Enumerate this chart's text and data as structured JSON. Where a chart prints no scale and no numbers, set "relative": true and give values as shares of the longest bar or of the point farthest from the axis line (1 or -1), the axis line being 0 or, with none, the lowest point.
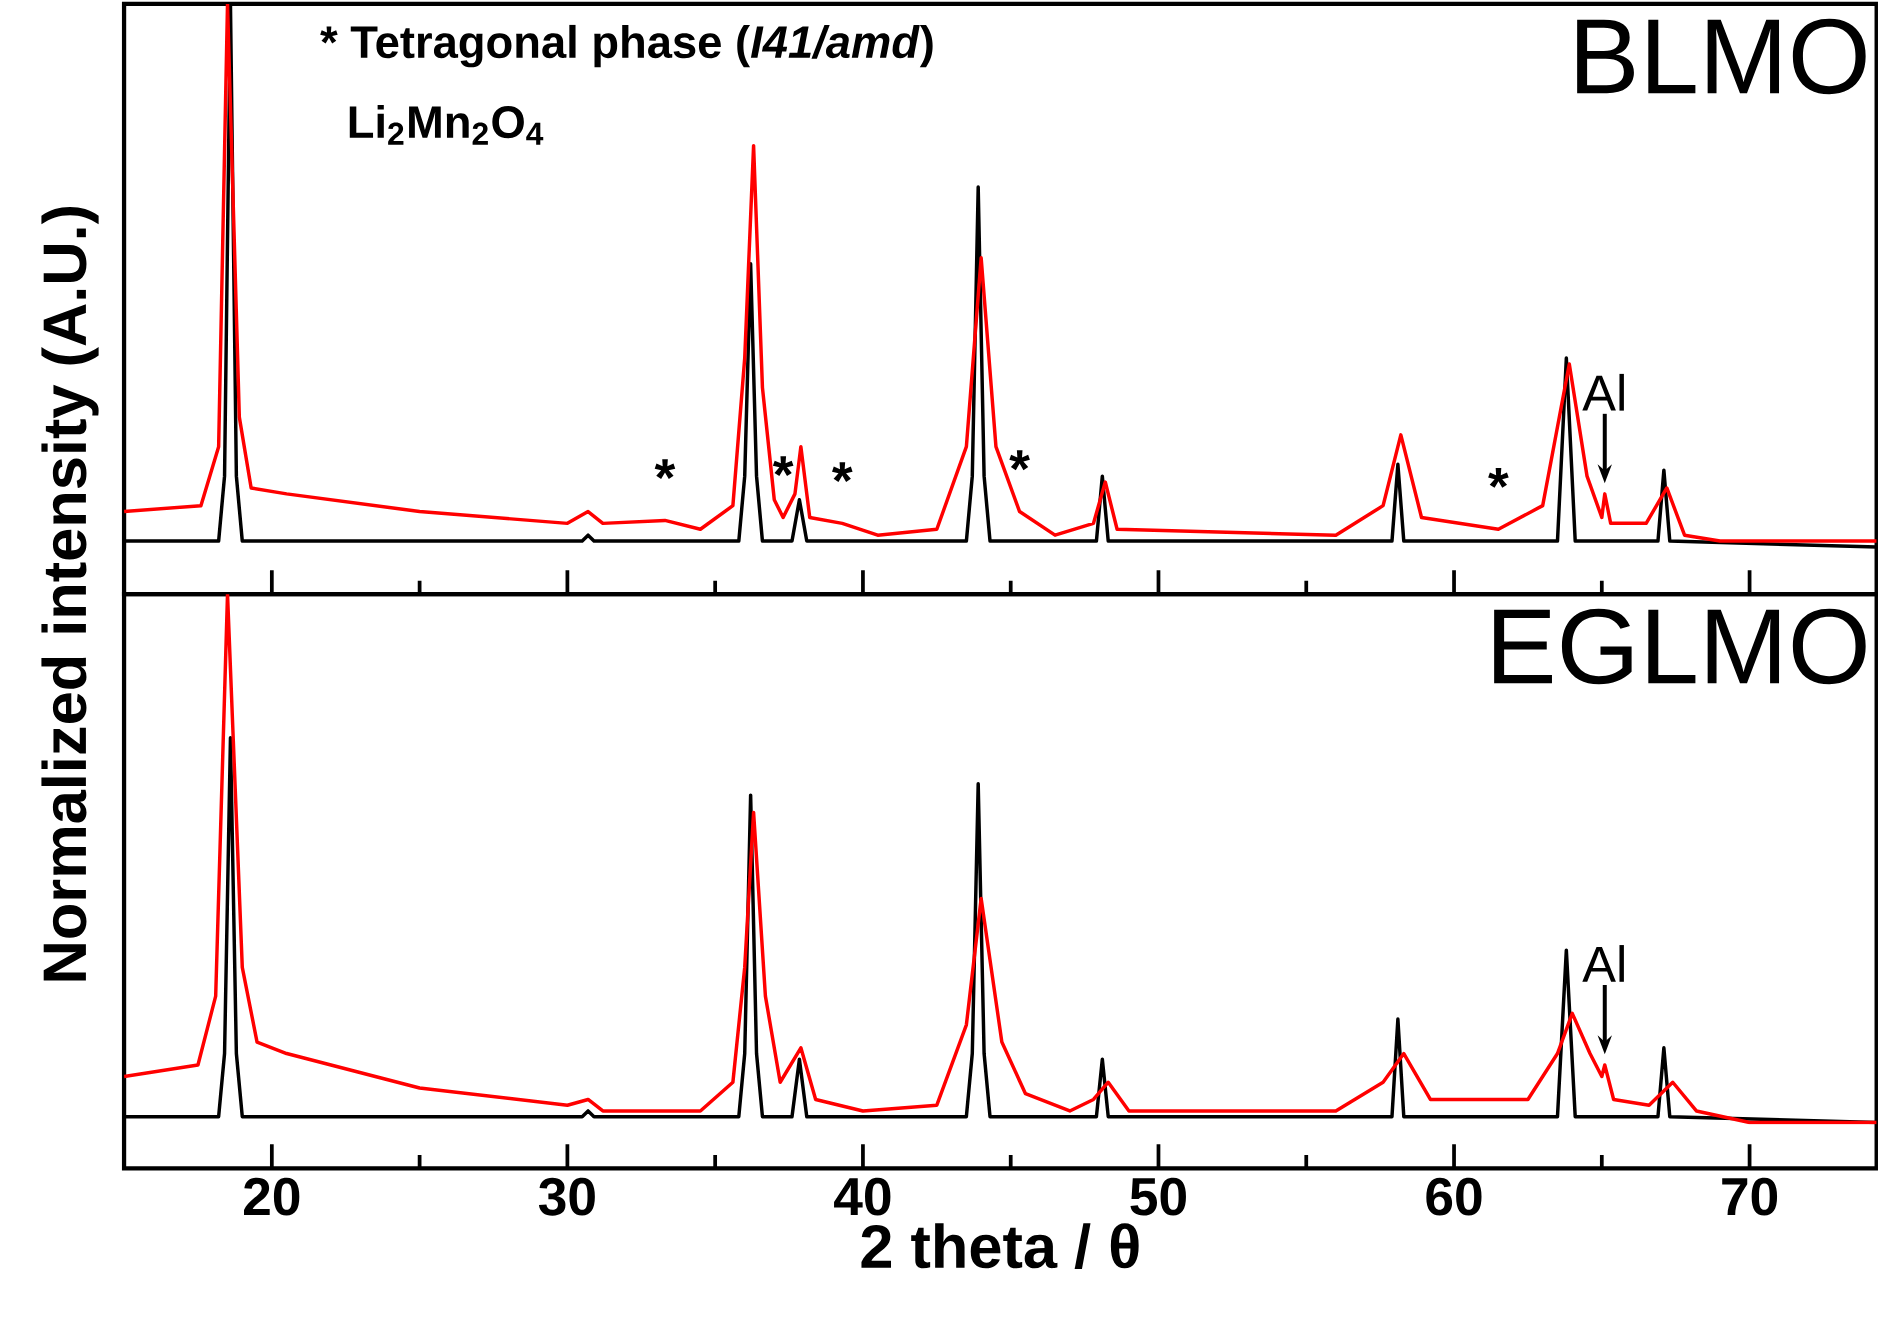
{
  "chart_data": [
    {
      "type": "line",
      "title": "BLMO",
      "ylabel": "Normalized intensity (A.U.)",
      "relative": true,
      "xlim": [
        15,
        74.3
      ],
      "xticks": [
        20,
        {
          "value": 25,
          "label": null
        },
        30,
        {
          "value": 35,
          "label": null
        },
        40,
        {
          "value": 45,
          "label": null
        },
        50,
        {
          "value": 55,
          "label": null
        },
        60,
        {
          "value": 65,
          "label": null
        },
        70
      ],
      "tick_labels": false,
      "series": [
        {
          "color": "#000000",
          "x": [
            15,
            18.2,
            18.4,
            18.6,
            18.8,
            19.0,
            30.5,
            30.7,
            30.9,
            35.8,
            36.0,
            36.2,
            36.4,
            36.6,
            37.6,
            37.85,
            38.1,
            43.5,
            43.7,
            43.9,
            44.1,
            44.3,
            47.9,
            48.1,
            48.3,
            57.9,
            58.1,
            58.3,
            63.5,
            63.8,
            64.1,
            66.9,
            67.1,
            67.3,
            74.3
          ],
          "values": [
            0.09,
            0.09,
            0.2,
            1,
            0.2,
            0.09,
            0.09,
            0.1,
            0.09,
            0.09,
            0.2,
            0.56,
            0.2,
            0.09,
            0.09,
            0.16,
            0.09,
            0.09,
            0.2,
            0.69,
            0.2,
            0.09,
            0.09,
            0.2,
            0.09,
            0.09,
            0.22,
            0.09,
            0.09,
            0.4,
            0.09,
            0.09,
            0.21,
            0.09,
            0.08
          ]
        },
        {
          "color": "#ff0000",
          "x": [
            15,
            17.6,
            18.2,
            18.5,
            18.9,
            19.3,
            20.5,
            25,
            30,
            30.7,
            31.2,
            33.3,
            34.5,
            35.6,
            36.0,
            36.3,
            36.6,
            37.0,
            37.3,
            37.7,
            37.9,
            38.2,
            39.3,
            40.5,
            42.5,
            43.5,
            44.0,
            44.5,
            45.3,
            46.5,
            47.8,
            48.2,
            48.6,
            56,
            57.6,
            58.2,
            58.9,
            61.5,
            63.0,
            63.9,
            64.5,
            65.0,
            65.1,
            65.3,
            66.5,
            67.2,
            67.8,
            69,
            74.3
          ],
          "values": [
            0.14,
            0.15,
            0.25,
            1,
            0.3,
            0.18,
            0.17,
            0.14,
            0.12,
            0.14,
            0.12,
            0.125,
            0.11,
            0.15,
            0.4,
            0.76,
            0.35,
            0.16,
            0.13,
            0.17,
            0.25,
            0.13,
            0.12,
            0.1,
            0.11,
            0.25,
            0.57,
            0.25,
            0.14,
            0.1,
            0.12,
            0.19,
            0.11,
            0.1,
            0.15,
            0.27,
            0.13,
            0.11,
            0.15,
            0.39,
            0.2,
            0.13,
            0.17,
            0.12,
            0.12,
            0.18,
            0.1,
            0.09,
            0.09
          ]
        }
      ],
      "annotations": [
        "* Tetragonal phase (*I41/amd*)",
        "Li$_{2}$Mn$_{2}$O$_{4}$",
        {
          "text": "*",
          "x": 33.3,
          "y": 0.125
        },
        {
          "text": "*",
          "x": 37.3,
          "y": 0.13
        },
        {
          "text": "*",
          "x": 39.3,
          "y": 0.12
        },
        {
          "text": "*",
          "x": 45.3,
          "y": 0.14
        },
        {
          "text": "*",
          "x": 61.5,
          "y": 0.11
        },
        {
          "text": "Al",
          "x": 65.1,
          "y": 0.17
        }
      ]
    },
    {
      "type": "line",
      "title": "EGLMO",
      "xlabel": "2 theta / θ",
      "relative": true,
      "xlim": [
        15,
        74.3
      ],
      "xticks": [
        20,
        {
          "value": 25,
          "label": null
        },
        30,
        {
          "value": 35,
          "label": null
        },
        40,
        {
          "value": 45,
          "label": null
        },
        50,
        {
          "value": 55,
          "label": null
        },
        60,
        {
          "value": 65,
          "label": null
        },
        70
      ],
      "tick_labels": "x",
      "series": [
        {
          "color": "#000000",
          "x": [
            15,
            18.2,
            18.4,
            18.6,
            18.8,
            19.0,
            30.5,
            30.7,
            30.9,
            35.8,
            36.0,
            36.2,
            36.4,
            36.6,
            37.6,
            37.85,
            38.1,
            43.5,
            43.7,
            43.9,
            44.1,
            44.3,
            47.9,
            48.1,
            48.3,
            57.9,
            58.1,
            58.3,
            63.5,
            63.8,
            64.1,
            66.9,
            67.1,
            67.3,
            74.3
          ],
          "values": [
            0.09,
            0.09,
            0.2,
            0.75,
            0.2,
            0.09,
            0.09,
            0.1,
            0.09,
            0.09,
            0.2,
            0.65,
            0.2,
            0.09,
            0.09,
            0.19,
            0.09,
            0.09,
            0.2,
            0.67,
            0.2,
            0.09,
            0.09,
            0.19,
            0.09,
            0.09,
            0.26,
            0.09,
            0.09,
            0.38,
            0.09,
            0.09,
            0.21,
            0.09,
            0.08
          ]
        },
        {
          "color": "#ff0000",
          "x": [
            15,
            17.5,
            18.1,
            18.5,
            19.0,
            19.5,
            20.5,
            25,
            30,
            30.7,
            31.2,
            34.5,
            35.6,
            36.0,
            36.3,
            36.7,
            37.2,
            37.9,
            38.4,
            40,
            42.5,
            43.5,
            44.0,
            44.7,
            45.5,
            47,
            47.8,
            48.3,
            49,
            56,
            57.6,
            58.3,
            59.2,
            62.5,
            63.5,
            64.0,
            64.6,
            65.0,
            65.1,
            65.4,
            66.6,
            67.4,
            68.2,
            70,
            74.3
          ],
          "values": [
            0.16,
            0.18,
            0.3,
            1,
            0.35,
            0.22,
            0.2,
            0.14,
            0.11,
            0.12,
            0.1,
            0.1,
            0.15,
            0.35,
            0.62,
            0.3,
            0.15,
            0.21,
            0.12,
            0.1,
            0.11,
            0.25,
            0.47,
            0.22,
            0.13,
            0.1,
            0.12,
            0.15,
            0.1,
            0.1,
            0.15,
            0.2,
            0.12,
            0.12,
            0.2,
            0.27,
            0.2,
            0.16,
            0.18,
            0.12,
            0.11,
            0.15,
            0.1,
            0.08,
            0.08
          ]
        }
      ],
      "annotations": [
        {
          "text": "Al",
          "x": 65.1,
          "y": 0.18
        }
      ]
    }
  ]
}
